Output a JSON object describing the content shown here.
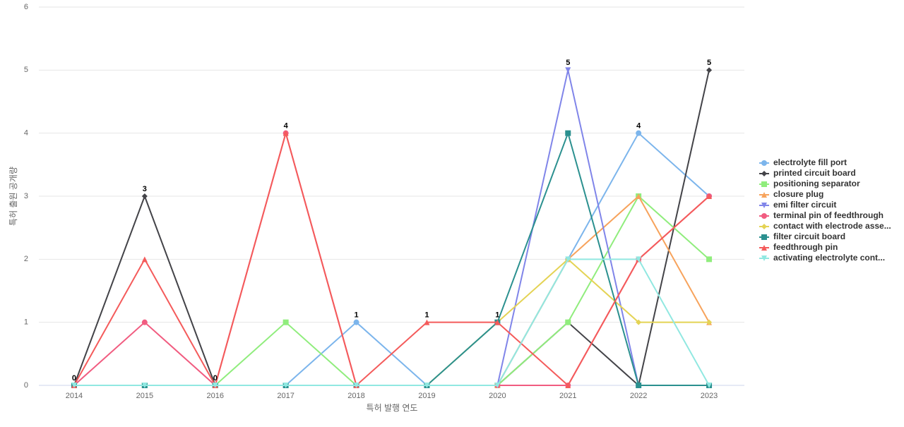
{
  "chart_data": {
    "type": "line",
    "x_label": "특허 발행 연도",
    "y_label": "특허 출원 공개량",
    "categories": [
      "2014",
      "2015",
      "2016",
      "2017",
      "2018",
      "2019",
      "2020",
      "2021",
      "2022",
      "2023"
    ],
    "ylim": [
      0,
      6
    ],
    "yticks": [
      0,
      1,
      2,
      3,
      4,
      5,
      6
    ],
    "grid": true,
    "legend": "right",
    "series": [
      {
        "name": "electrolyte fill port",
        "color": "#7cb5ec",
        "marker": "circle",
        "values": [
          0,
          0,
          0,
          0,
          1,
          0,
          0,
          2,
          4,
          3
        ]
      },
      {
        "name": "printed circuit board",
        "color": "#434348",
        "marker": "diamond",
        "values": [
          0,
          3,
          0,
          0,
          0,
          0,
          0,
          1,
          0,
          5
        ]
      },
      {
        "name": "positioning separator",
        "color": "#90ed7d",
        "marker": "square",
        "values": [
          0,
          0,
          0,
          1,
          0,
          0,
          0,
          1,
          3,
          2
        ]
      },
      {
        "name": "closure plug",
        "color": "#f7a35c",
        "marker": "triangle",
        "values": [
          0,
          0,
          0,
          0,
          0,
          0,
          0,
          2,
          3,
          1
        ]
      },
      {
        "name": "emi filter circuit",
        "color": "#8085e9",
        "marker": "triangle-down",
        "values": [
          0,
          0,
          0,
          0,
          0,
          0,
          0,
          5,
          0,
          0
        ]
      },
      {
        "name": "terminal pin of feedthrough",
        "color": "#f15c80",
        "marker": "circle",
        "values": [
          0,
          1,
          0,
          4,
          0,
          0,
          0,
          0,
          2,
          3
        ]
      },
      {
        "name": "contact with electrode asse...",
        "color": "#e4d354",
        "marker": "diamond",
        "values": [
          0,
          0,
          0,
          0,
          0,
          0,
          1,
          2,
          1,
          1
        ]
      },
      {
        "name": "filter circuit board",
        "color": "#2b908f",
        "marker": "square",
        "values": [
          0,
          0,
          0,
          0,
          0,
          0,
          1,
          4,
          0,
          0
        ]
      },
      {
        "name": "feedthrough pin",
        "color": "#f45b5b",
        "marker": "triangle",
        "values": [
          0,
          2,
          0,
          4,
          0,
          1,
          1,
          0,
          2,
          3
        ]
      },
      {
        "name": "activating electrolyte cont...",
        "color": "#91e8e1",
        "marker": "triangle-down",
        "values": [
          0,
          0,
          0,
          0,
          0,
          0,
          0,
          2,
          2,
          0
        ]
      }
    ]
  }
}
